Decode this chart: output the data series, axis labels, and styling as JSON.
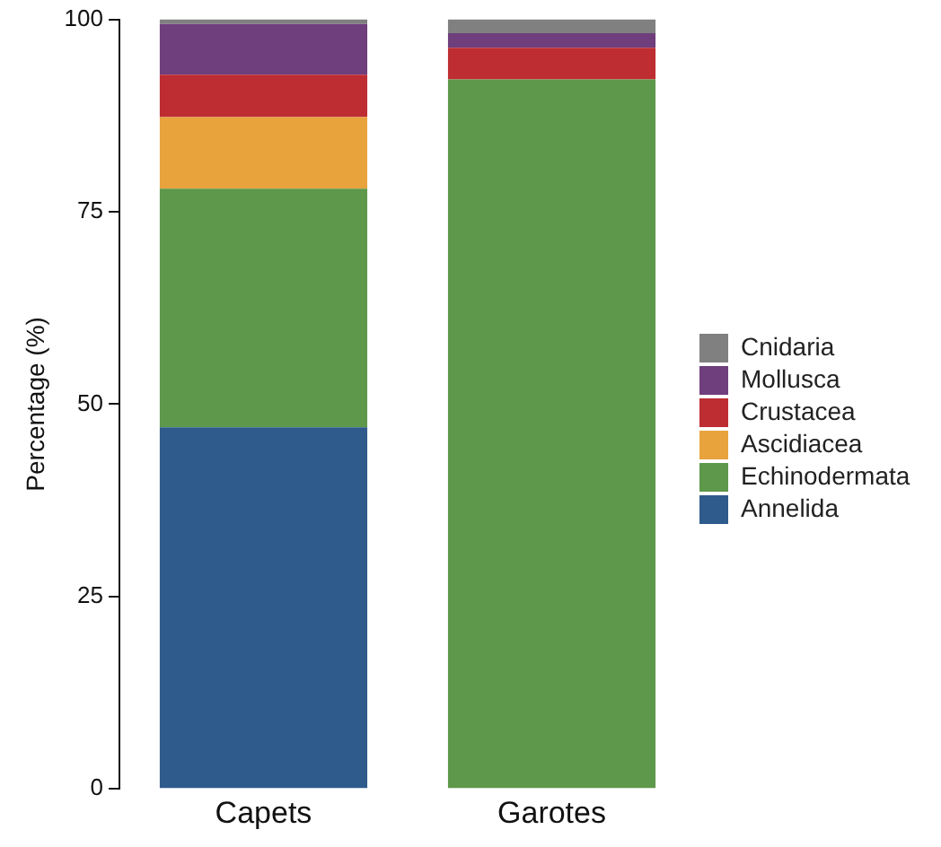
{
  "chart_data": {
    "type": "bar",
    "stacked": true,
    "ylabel": "Percentage (%)",
    "categories": [
      "Capets",
      "Garotes"
    ],
    "series": [
      {
        "name": "Annelida",
        "color": "#2e5a8c",
        "values": [
          47,
          0
        ]
      },
      {
        "name": "Echinodermata",
        "color": "#5e984a",
        "values": [
          31,
          92.2
        ]
      },
      {
        "name": "Ascidiacea",
        "color": "#e8a33d",
        "values": [
          9.3,
          0
        ]
      },
      {
        "name": "Crustacea",
        "color": "#bd2d32",
        "values": [
          5.5,
          4.1
        ]
      },
      {
        "name": "Mollusca",
        "color": "#6f3e7d",
        "values": [
          6.6,
          1.9
        ]
      },
      {
        "name": "Cnidaria",
        "color": "#808080",
        "values": [
          0.6,
          1.8
        ]
      }
    ],
    "ylim": [
      0,
      100
    ],
    "yticks": [
      0,
      25,
      50,
      75,
      100
    ],
    "grid": false,
    "legend": "right"
  }
}
